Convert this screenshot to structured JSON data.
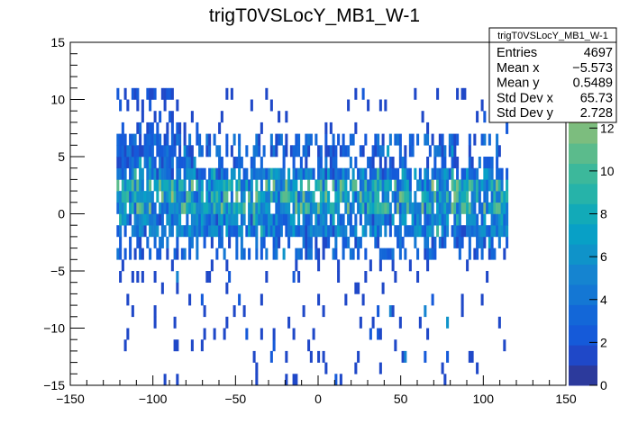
{
  "chart_data": {
    "type": "heatmap",
    "title": "trigT0VSLocY_MB1_W-1",
    "xlabel": "",
    "ylabel": "",
    "xlim": [
      -150,
      150
    ],
    "ylim": [
      -15,
      15
    ],
    "zlim": [
      0,
      16
    ],
    "x_ticks": [
      "−150",
      "−100",
      "−50",
      "0",
      "50",
      "100",
      "150"
    ],
    "x_tick_values": [
      -150,
      -100,
      -50,
      0,
      50,
      100,
      150
    ],
    "y_ticks": [
      "−15",
      "−10",
      "−5",
      "0",
      "5",
      "10",
      "15"
    ],
    "y_tick_values": [
      -15,
      -10,
      -5,
      0,
      5,
      10,
      15
    ],
    "z_ticks": [
      "0",
      "2",
      "4",
      "6",
      "8",
      "10",
      "12"
    ],
    "z_tick_values": [
      0,
      2,
      4,
      6,
      8,
      10,
      12
    ],
    "bin_width_x": 1.5,
    "bin_width_y": 1,
    "occupied_x_range": [
      -122,
      115
    ],
    "core_y_range": [
      -2,
      4
    ],
    "stats": {
      "title": "trigT0VSLocY_MB1_W-1",
      "rows": [
        {
          "label": "Entries",
          "value": "4697"
        },
        {
          "label": "Mean x",
          "value": "−5.573"
        },
        {
          "label": "Mean y",
          "value": "0.5489"
        },
        {
          "label": "Std Dev x",
          "value": "65.73"
        },
        {
          "label": "Std Dev y",
          "value": "2.728"
        }
      ]
    },
    "palette": [
      "#2c3a9c",
      "#1f48c8",
      "#155ad9",
      "#1367d8",
      "#1477d4",
      "#1584d0",
      "#0f93c9",
      "#08a0c6",
      "#12aab8",
      "#26b3a9",
      "#3cb89b",
      "#5bbb8c",
      "#7cbd7e",
      "#98be72",
      "#b3bc68",
      "#d1b95a",
      "#e3bd4d"
    ]
  }
}
